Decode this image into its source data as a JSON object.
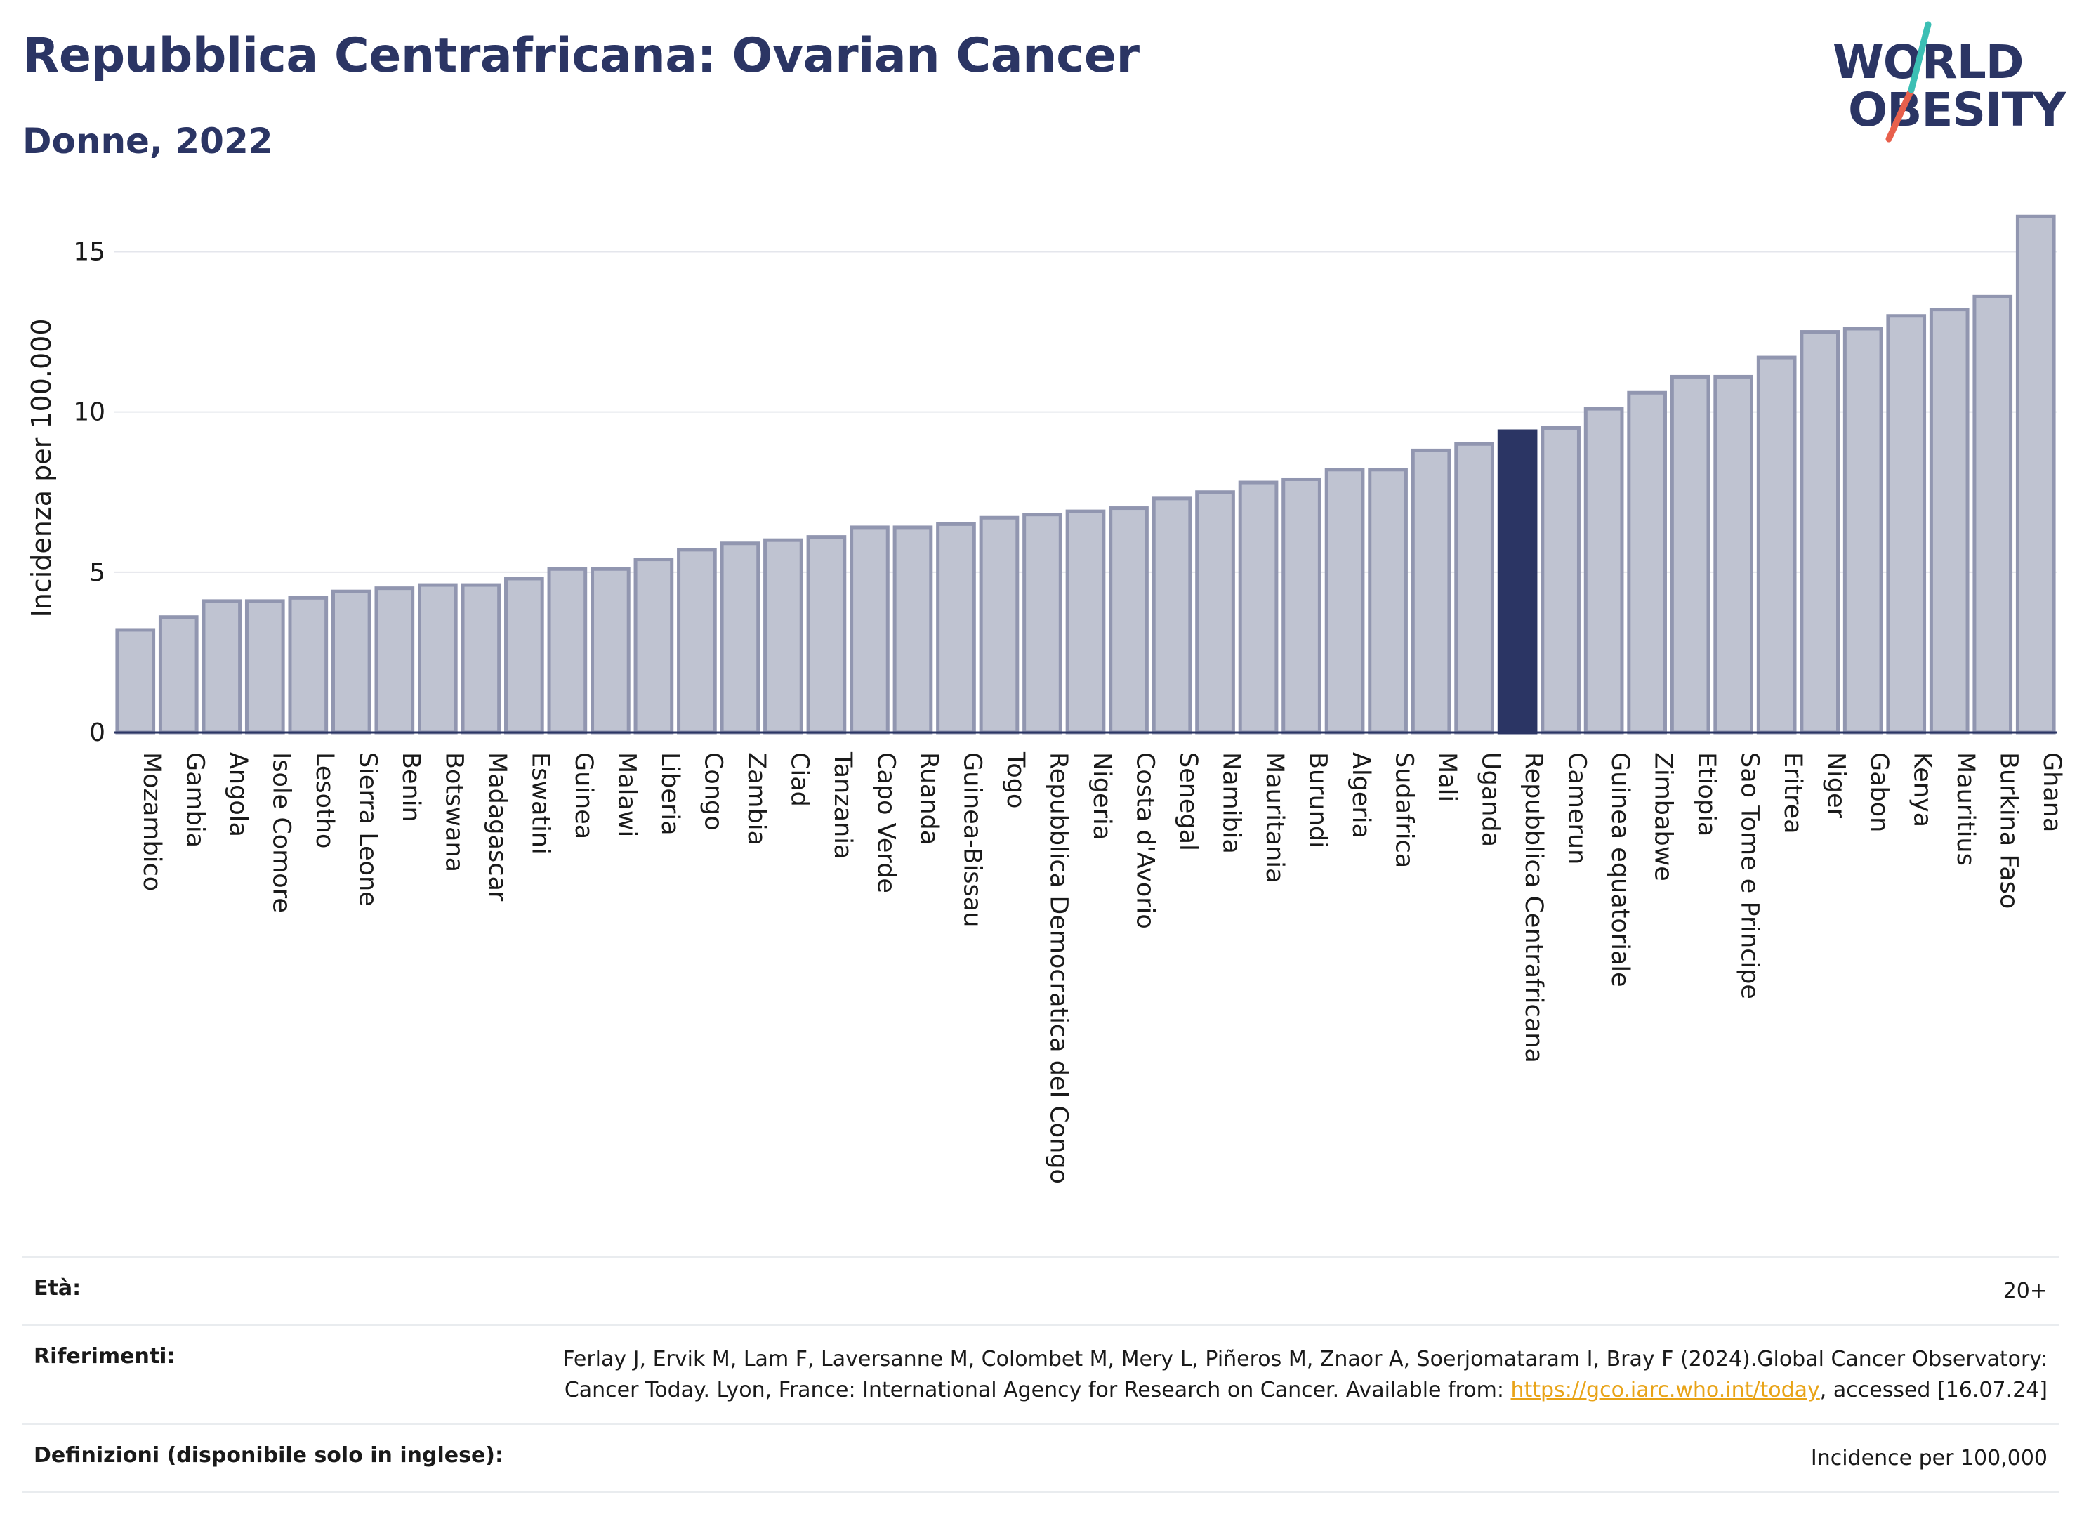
{
  "header": {
    "title": "Repubblica Centrafricana: Ovarian Cancer",
    "subtitle": "Donne, 2022"
  },
  "logo": {
    "line1": "WORLD",
    "line2": "OBESITY",
    "slash_colors": [
      "#e8604c",
      "#3cbfb4"
    ]
  },
  "colors": {
    "bar": "#bfc3d1",
    "bar_border": "#9196b0",
    "highlight": "#2b3564",
    "text": "#1a1a1a",
    "link": "#e8a317"
  },
  "chart_data": {
    "type": "bar",
    "ylabel": "Incidenza per 100.000",
    "ylim": [
      0,
      16.5
    ],
    "yticks": [
      0,
      5,
      10,
      15
    ],
    "grid": true,
    "highlight": "Repubblica Centrafricana",
    "categories": [
      "Mozambico",
      "Gambia",
      "Angola",
      "Isole Comore",
      "Lesotho",
      "Sierra Leone",
      "Benin",
      "Botswana",
      "Madagascar",
      "Eswatini",
      "Guinea",
      "Malawi",
      "Liberia",
      "Congo",
      "Zambia",
      "Ciad",
      "Tanzania",
      "Capo Verde",
      "Ruanda",
      "Guinea-Bissau",
      "Togo",
      "Repubblica Democratica del Congo",
      "Nigeria",
      "Costa d'Avorio",
      "Senegal",
      "Namibia",
      "Mauritania",
      "Burundi",
      "Algeria",
      "Sudafrica",
      "Mali",
      "Uganda",
      "Repubblica Centrafricana",
      "Camerun",
      "Guinea equatoriale",
      "Zimbabwe",
      "Etiopia",
      "Sao Tome e Principe",
      "Eritrea",
      "Niger",
      "Gabon",
      "Kenya",
      "Mauritius",
      "Burkina Faso",
      "Ghana"
    ],
    "values": [
      3.2,
      3.6,
      4.1,
      4.1,
      4.2,
      4.4,
      4.5,
      4.6,
      4.6,
      4.8,
      5.1,
      5.1,
      5.4,
      5.7,
      5.9,
      6.0,
      6.1,
      6.4,
      6.4,
      6.5,
      6.7,
      6.8,
      6.9,
      7.0,
      7.3,
      7.5,
      7.8,
      7.9,
      8.2,
      8.2,
      8.8,
      9.0,
      9.4,
      9.5,
      10.1,
      10.6,
      11.1,
      11.1,
      11.7,
      12.5,
      12.6,
      13.0,
      13.2,
      13.6,
      16.1
    ]
  },
  "footer": {
    "age_label": "Età:",
    "age_value": "20+",
    "ref_label": "Riferimenti:",
    "ref_text_1": "Ferlay J, Ervik M, Lam F, Laversanne M, Colombet M, Mery L, Piñeros M, Znaor A, Soerjomataram I, Bray F (2024).Global Cancer Observatory: Cancer Today. Lyon, France: International Agency for Research on Cancer. Available from: ",
    "ref_link": "https://gco.iarc.who.int/today",
    "ref_text_2": ", accessed [16.07.24]",
    "def_label": "Definizioni (disponibile solo in inglese):",
    "def_value": "Incidence per 100,000"
  }
}
